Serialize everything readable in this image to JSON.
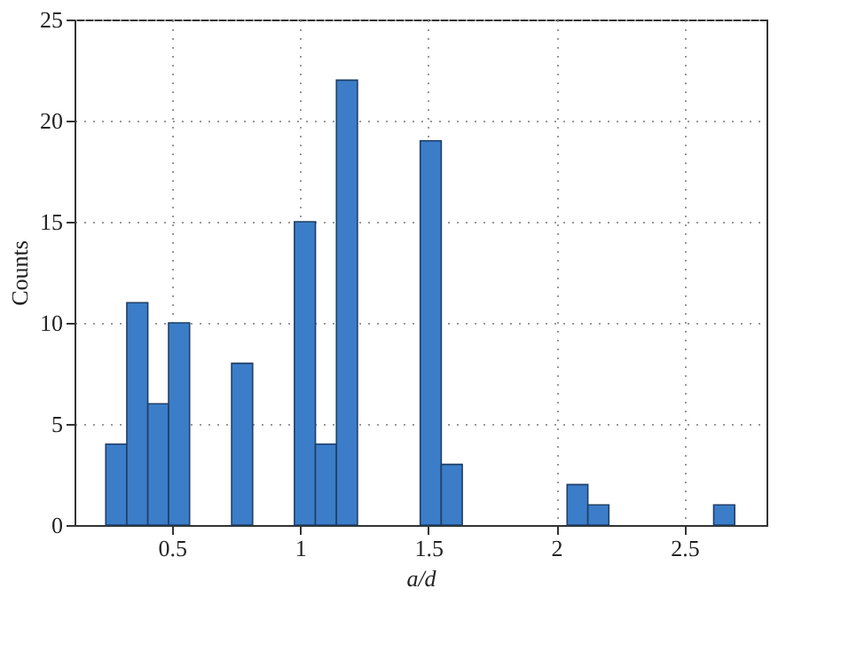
{
  "chart_data": {
    "type": "histogram",
    "xlabel": "a/d",
    "ylabel": "Counts",
    "bins": [
      0.242,
      0.324,
      0.406,
      0.487,
      0.569,
      0.651,
      0.733,
      0.815,
      0.896,
      0.978,
      1.06,
      1.142,
      1.224,
      1.305,
      1.387,
      1.469,
      1.551,
      1.633,
      1.714,
      1.796,
      1.878,
      1.96,
      2.042,
      2.123,
      2.205,
      2.287,
      2.369,
      2.451,
      2.532,
      2.614,
      2.696
    ],
    "values": [
      4,
      11,
      6,
      10,
      0,
      0,
      8,
      0,
      0,
      15,
      4,
      22,
      0,
      0,
      0,
      19,
      3,
      0,
      0,
      0,
      0,
      0,
      2,
      1,
      0,
      0,
      0,
      0,
      0,
      1
    ],
    "color": "#3b7dc8",
    "xlim": [
      0.12,
      2.82
    ],
    "xticks": [
      0.5,
      1,
      1.5,
      2,
      2.5
    ],
    "ylim": [
      0,
      25
    ],
    "yticks": [
      0,
      5,
      10,
      15,
      20,
      25
    ],
    "grid": true,
    "line_style": "dotted"
  }
}
